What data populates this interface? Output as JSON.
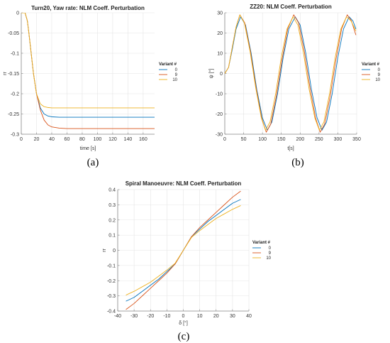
{
  "colors": {
    "0": "#0072BD",
    "9": "#D95319",
    "10": "#EDB120",
    "grid": "#e4e4e4",
    "axis": "#888888"
  },
  "chart_data": [
    {
      "type": "line",
      "title": "Turn20, Yaw rate: NLM Coeff. Perturbation",
      "xlabel": "time [s]",
      "ylabel": "rr",
      "xlim": [
        0,
        175
      ],
      "ylim": [
        -0.3,
        0
      ],
      "xticks": [
        0,
        20,
        40,
        60,
        80,
        100,
        120,
        140,
        160
      ],
      "yticks": [
        0,
        -0.05,
        -0.1,
        -0.15,
        -0.2,
        -0.25,
        -0.3
      ],
      "xtick_labels": [
        "0",
        "20",
        "40",
        "60",
        "80",
        "100",
        "120",
        "140",
        "160"
      ],
      "ytick_labels": [
        "0",
        "-0.05",
        "-0.1",
        "-0.15",
        "-0.2",
        "-0.25",
        "-0.3"
      ],
      "grid": true,
      "legend": {
        "title": "Variant #",
        "position": "outside-right"
      },
      "caption": "(a)",
      "series": [
        {
          "name": "0",
          "color": "#0072BD",
          "x": [
            0,
            5,
            8,
            10,
            13,
            16,
            20,
            25,
            30,
            35,
            40,
            50,
            60,
            80,
            100,
            120,
            140,
            160,
            175
          ],
          "y": [
            0,
            0,
            -0.02,
            -0.05,
            -0.1,
            -0.15,
            -0.2,
            -0.235,
            -0.25,
            -0.255,
            -0.257,
            -0.258,
            -0.258,
            -0.258,
            -0.258,
            -0.258,
            -0.258,
            -0.258,
            -0.258
          ]
        },
        {
          "name": "9",
          "color": "#D95319",
          "x": [
            0,
            5,
            8,
            10,
            13,
            16,
            20,
            25,
            30,
            35,
            40,
            50,
            60,
            80,
            100,
            120,
            140,
            160,
            175
          ],
          "y": [
            0,
            0,
            -0.02,
            -0.05,
            -0.1,
            -0.15,
            -0.2,
            -0.24,
            -0.265,
            -0.277,
            -0.282,
            -0.285,
            -0.286,
            -0.286,
            -0.286,
            -0.286,
            -0.286,
            -0.286,
            -0.286
          ]
        },
        {
          "name": "10",
          "color": "#EDB120",
          "x": [
            0,
            5,
            8,
            10,
            13,
            16,
            20,
            25,
            30,
            35,
            40,
            50,
            60,
            80,
            100,
            120,
            140,
            160,
            175
          ],
          "y": [
            0,
            0,
            -0.02,
            -0.05,
            -0.1,
            -0.15,
            -0.2,
            -0.225,
            -0.232,
            -0.234,
            -0.235,
            -0.235,
            -0.235,
            -0.235,
            -0.235,
            -0.235,
            -0.235,
            -0.235,
            -0.235
          ]
        }
      ]
    },
    {
      "type": "line",
      "title": "ZZ20: NLM Coeff. Perturbation",
      "xlabel": "t[s]",
      "ylabel": "ψ [°]",
      "xlim": [
        0,
        350
      ],
      "ylim": [
        -30,
        30
      ],
      "xticks": [
        0,
        50,
        100,
        150,
        200,
        250,
        300,
        350
      ],
      "yticks": [
        30,
        20,
        10,
        0,
        -10,
        -20,
        -30
      ],
      "xtick_labels": [
        "0",
        "50",
        "100",
        "150",
        "200",
        "250",
        "300",
        "350"
      ],
      "ytick_labels": [
        "30",
        "20",
        "10",
        "0",
        "-10",
        "-20",
        "-30"
      ],
      "grid": true,
      "legend": {
        "title": "Variant #",
        "position": "outside-right"
      },
      "caption": "(b)",
      "series": [
        {
          "name": "0",
          "color": "#0072BD",
          "x": [
            0,
            10,
            20,
            30,
            42,
            55,
            70,
            85,
            100,
            113,
            125,
            140,
            155,
            170,
            187,
            200,
            215,
            230,
            245,
            258,
            270,
            285,
            300,
            315,
            330,
            340,
            348
          ],
          "y": [
            0,
            3,
            12,
            22,
            28,
            24,
            10,
            -8,
            -22,
            -28,
            -24,
            -10,
            8,
            22,
            28,
            24,
            10,
            -8,
            -22,
            -28,
            -24,
            -10,
            8,
            22,
            28,
            26,
            22
          ]
        },
        {
          "name": "9",
          "color": "#D95319",
          "x": [
            0,
            10,
            20,
            30,
            40,
            53,
            68,
            83,
            98,
            110,
            122,
            137,
            152,
            167,
            183,
            196,
            211,
            226,
            241,
            253,
            265,
            280,
            295,
            310,
            325,
            336,
            348
          ],
          "y": [
            0,
            3,
            13,
            23,
            29,
            25,
            11,
            -7,
            -22,
            -29,
            -25,
            -11,
            7,
            22,
            29,
            25,
            11,
            -7,
            -22,
            -29,
            -25,
            -11,
            7,
            22,
            29,
            26,
            19
          ]
        },
        {
          "name": "10",
          "color": "#EDB120",
          "x": [
            0,
            10,
            20,
            30,
            40,
            52,
            67,
            82,
            97,
            108,
            120,
            135,
            150,
            165,
            181,
            194,
            209,
            224,
            239,
            251,
            263,
            278,
            293,
            308,
            323,
            335,
            348
          ],
          "y": [
            0,
            3,
            13,
            23,
            29,
            25,
            11,
            -7,
            -22,
            -28,
            -24,
            -10,
            8,
            22,
            28,
            24,
            10,
            -8,
            -22,
            -28,
            -24,
            -10,
            8,
            22,
            28,
            26,
            21
          ]
        }
      ]
    },
    {
      "type": "line",
      "title": "Spiral Manoeuvre: NLM Coeff. Perturbation",
      "xlabel": "δ [°]",
      "ylabel": "rr",
      "xlim": [
        -40,
        40
      ],
      "ylim": [
        -0.4,
        0.4
      ],
      "xticks": [
        -40,
        -30,
        -20,
        -10,
        0,
        10,
        20,
        30,
        40
      ],
      "yticks": [
        0.4,
        0.3,
        0.2,
        0.1,
        0,
        -0.1,
        -0.2,
        -0.3,
        -0.4
      ],
      "xtick_labels": [
        "-40",
        "-30",
        "-20",
        "-10",
        "0",
        "10",
        "20",
        "30",
        "40"
      ],
      "ytick_labels": [
        "0.4",
        "0.3",
        "0.2",
        "0.1",
        "0",
        "-0.1",
        "-0.2",
        "-0.3",
        "-0.4"
      ],
      "grid": true,
      "legend": {
        "title": "Variant #",
        "position": "outside-right"
      },
      "caption": "(c)",
      "series": [
        {
          "name": "0",
          "color": "#0072BD",
          "x": [
            -35,
            -30,
            -25,
            -20,
            -15,
            -10,
            -5,
            0,
            5,
            10,
            15,
            20,
            25,
            30,
            35
          ],
          "y": [
            -0.335,
            -0.31,
            -0.27,
            -0.23,
            -0.19,
            -0.14,
            -0.09,
            0,
            0.09,
            0.14,
            0.19,
            0.23,
            0.27,
            0.31,
            0.335
          ]
        },
        {
          "name": "9",
          "color": "#D95319",
          "x": [
            -35,
            -30,
            -25,
            -20,
            -15,
            -10,
            -5,
            0,
            5,
            10,
            15,
            20,
            25,
            30,
            35
          ],
          "y": [
            -0.39,
            -0.35,
            -0.3,
            -0.25,
            -0.2,
            -0.15,
            -0.09,
            0,
            0.09,
            0.15,
            0.2,
            0.25,
            0.3,
            0.35,
            0.39
          ]
        },
        {
          "name": "10",
          "color": "#EDB120",
          "x": [
            -35,
            -30,
            -25,
            -20,
            -15,
            -10,
            -5,
            0,
            5,
            10,
            15,
            20,
            25,
            30,
            35
          ],
          "y": [
            -0.295,
            -0.27,
            -0.24,
            -0.21,
            -0.17,
            -0.13,
            -0.085,
            0,
            0.085,
            0.13,
            0.17,
            0.21,
            0.24,
            0.27,
            0.295
          ]
        }
      ]
    }
  ]
}
